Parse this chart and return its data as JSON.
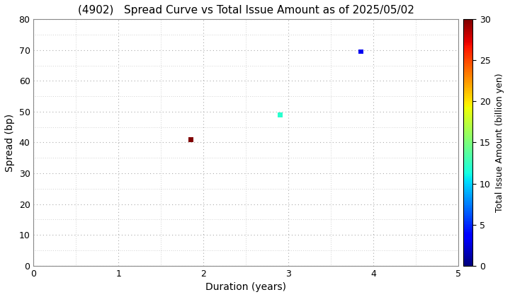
{
  "title": "(4902)   Spread Curve vs Total Issue Amount as of 2025/05/02",
  "xlabel": "Duration (years)",
  "ylabel": "Spread (bp)",
  "colorbar_label": "Total Issue Amount (billion yen)",
  "xlim": [
    0,
    5
  ],
  "ylim": [
    0,
    80
  ],
  "xticks": [
    0,
    1,
    2,
    3,
    4,
    5
  ],
  "yticks": [
    0,
    10,
    20,
    30,
    40,
    50,
    60,
    70,
    80
  ],
  "colorbar_min": 0,
  "colorbar_max": 30,
  "colorbar_ticks": [
    0,
    5,
    10,
    15,
    20,
    25,
    30
  ],
  "points": [
    {
      "duration": 1.85,
      "spread": 41,
      "issue_amount": 30
    },
    {
      "duration": 2.9,
      "spread": 49,
      "issue_amount": 12
    },
    {
      "duration": 3.85,
      "spread": 69.5,
      "issue_amount": 3
    }
  ],
  "marker_size": 25,
  "background_color": "#ffffff",
  "grid_color": "#aaaaaa",
  "title_fontsize": 11,
  "axis_fontsize": 10,
  "tick_fontsize": 9,
  "colorbar_fontsize": 9
}
